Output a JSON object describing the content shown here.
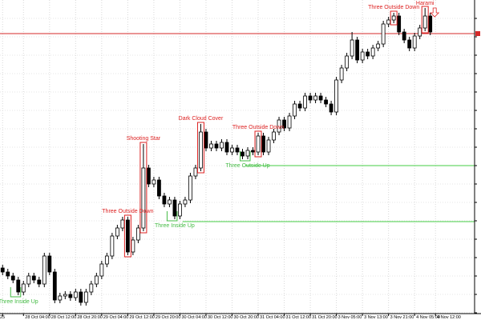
{
  "chart_data": {
    "type": "candlestick",
    "xlim": [
      -0.5,
      90.5
    ],
    "ylim": [
      0,
      392
    ],
    "grid": true,
    "up_color": "#ffffff",
    "down_color": "#000000",
    "xticks": [
      {
        "value": 0,
        "label": "25"
      },
      {
        "value": 4,
        "label": "28 Oct 04:00"
      },
      {
        "value": 9,
        "label": "28 Oct 12:00"
      },
      {
        "value": 14,
        "label": "28 Oct 20:00"
      },
      {
        "value": 19,
        "label": "29 Oct 04:00"
      },
      {
        "value": 24,
        "label": "29 Oct 12:00"
      },
      {
        "value": 29,
        "label": "29 Oct 20:00"
      },
      {
        "value": 34,
        "label": "30 Oct 04:00"
      },
      {
        "value": 39,
        "label": "30 Oct 12:00"
      },
      {
        "value": 44,
        "label": "30 Oct 20:00"
      },
      {
        "value": 49,
        "label": "31 Oct 04:00"
      },
      {
        "value": 54,
        "label": "31 Oct 12:00"
      },
      {
        "value": 59,
        "label": "31 Oct 20:00"
      },
      {
        "value": 64,
        "label": "3 Nov 05:00"
      },
      {
        "value": 69,
        "label": "3 Nov 13:00"
      },
      {
        "value": 74,
        "label": "3 Nov 21:00"
      },
      {
        "value": 79,
        "label": "4 Nov 05:00"
      },
      {
        "value": 83,
        "label": "4 Nov 12:00"
      }
    ],
    "open": [
      57,
      52,
      47,
      42,
      27,
      37,
      47,
      42,
      37,
      72,
      52,
      17,
      22,
      24,
      20,
      27,
      14,
      27,
      37,
      47,
      62,
      72,
      97,
      107,
      117,
      77,
      92,
      107,
      182,
      162,
      167,
      147,
      137,
      142,
      122,
      137,
      142,
      172,
      182,
      227,
      207,
      212,
      207,
      214,
      202,
      207,
      202,
      197,
      204,
      202,
      222,
      202,
      217,
      227,
      242,
      232,
      247,
      262,
      257,
      272,
      267,
      272,
      267,
      262,
      252,
      292,
      307,
      322,
      342,
      317,
      327,
      322,
      332,
      337,
      362,
      367,
      372,
      352,
      342,
      332,
      347,
      357,
      372
    ],
    "high": [
      61,
      56,
      51,
      46,
      41,
      51,
      51,
      46,
      76,
      76,
      56,
      26,
      28,
      28,
      31,
      31,
      31,
      41,
      51,
      66,
      76,
      101,
      111,
      121,
      121,
      96,
      111,
      212,
      186,
      171,
      171,
      151,
      146,
      146,
      141,
      146,
      176,
      186,
      237,
      231,
      216,
      216,
      218,
      218,
      211,
      211,
      206,
      208,
      208,
      226,
      226,
      221,
      231,
      246,
      246,
      251,
      266,
      266,
      276,
      276,
      276,
      276,
      271,
      266,
      296,
      311,
      326,
      352,
      346,
      331,
      331,
      336,
      341,
      366,
      371,
      376,
      376,
      356,
      346,
      351,
      361,
      382,
      376
    ],
    "low": [
      48,
      43,
      38,
      23,
      23,
      33,
      38,
      33,
      33,
      48,
      13,
      13,
      18,
      16,
      16,
      10,
      10,
      23,
      33,
      43,
      58,
      68,
      93,
      103,
      73,
      73,
      88,
      103,
      158,
      158,
      143,
      133,
      133,
      118,
      118,
      133,
      138,
      168,
      178,
      203,
      203,
      203,
      203,
      198,
      198,
      198,
      193,
      193,
      198,
      198,
      198,
      198,
      213,
      223,
      228,
      228,
      243,
      253,
      253,
      263,
      263,
      263,
      258,
      248,
      248,
      288,
      303,
      318,
      313,
      313,
      318,
      318,
      328,
      333,
      358,
      363,
      348,
      338,
      328,
      328,
      343,
      353,
      348
    ],
    "close": [
      52,
      47,
      42,
      27,
      37,
      47,
      42,
      37,
      72,
      52,
      17,
      22,
      24,
      20,
      27,
      14,
      27,
      37,
      47,
      62,
      72,
      97,
      107,
      117,
      77,
      92,
      107,
      182,
      162,
      167,
      147,
      137,
      142,
      122,
      137,
      142,
      172,
      182,
      227,
      207,
      212,
      207,
      214,
      202,
      207,
      202,
      197,
      204,
      202,
      222,
      202,
      217,
      227,
      242,
      232,
      247,
      262,
      257,
      272,
      267,
      272,
      267,
      262,
      252,
      292,
      307,
      322,
      342,
      317,
      327,
      322,
      332,
      337,
      362,
      367,
      372,
      352,
      342,
      332,
      347,
      357,
      372,
      352
    ],
    "price_line": {
      "value": 350,
      "color": "#d42a2a"
    },
    "levels": [
      {
        "value": 185,
        "start": 47,
        "color": "#44cc44"
      },
      {
        "value": 115,
        "start": 35,
        "color": "#44cc44"
      }
    ],
    "patterns": [
      {
        "label": "Three Inside Up",
        "index": 3,
        "color": "#44bb44"
      },
      {
        "label": "Three Outside Down",
        "index": 24,
        "color": "#dd2222"
      },
      {
        "label": "Shooting Star",
        "index": 27,
        "color": "#dd2222"
      },
      {
        "label": "Three Inside Up",
        "index": 33,
        "color": "#44bb44"
      },
      {
        "label": "Dark Cloud Cover",
        "index": 38,
        "color": "#dd2222"
      },
      {
        "label": "Three Outside Up",
        "index": 47,
        "color": "#44bb44"
      },
      {
        "label": "Three Outside Down",
        "index": 49,
        "color": "#dd2222"
      },
      {
        "label": "Three Outside Down",
        "index": 75,
        "color": "#dd2222"
      },
      {
        "label": "Harami",
        "index": 81,
        "color": "#dd2222"
      }
    ]
  }
}
